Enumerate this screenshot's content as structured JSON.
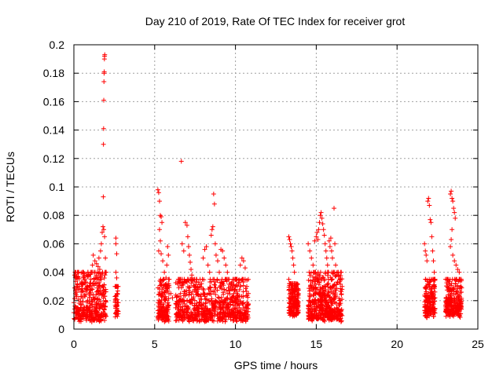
{
  "chart_data": {
    "type": "scatter",
    "title": "Day 210 of 2019, Rate Of TEC Index for receiver grot",
    "xlabel": "GPS time / hours",
    "ylabel": "ROTI / TECUs",
    "xlim": [
      0,
      25
    ],
    "ylim": [
      0,
      0.2
    ],
    "xticks": [
      "0",
      "5",
      "10",
      "15",
      "20",
      "25"
    ],
    "yticks": [
      "0",
      "0.02",
      "0.04",
      "0.06",
      "0.08",
      "0.1",
      "0.12",
      "0.14",
      "0.16",
      "0.18",
      "0.2"
    ],
    "grid": true,
    "marker": "plus",
    "color": "#ff0000",
    "series": [
      {
        "points": [
          [
            0.05,
            0.038
          ],
          [
            0.15,
            0.036
          ],
          [
            0.25,
            0.037
          ],
          [
            0.3,
            0.04
          ],
          [
            0.2,
            0.03
          ],
          [
            0.1,
            0.025
          ],
          [
            0.35,
            0.028
          ],
          [
            0.45,
            0.026
          ],
          [
            0.55,
            0.022
          ],
          [
            0.65,
            0.024
          ],
          [
            0.75,
            0.027
          ],
          [
            0.85,
            0.02
          ],
          [
            0.95,
            0.025
          ],
          [
            1.0,
            0.03
          ],
          [
            1.05,
            0.035
          ],
          [
            1.1,
            0.04
          ],
          [
            1.15,
            0.045
          ],
          [
            1.2,
            0.052
          ],
          [
            1.3,
            0.048
          ],
          [
            1.4,
            0.046
          ],
          [
            1.5,
            0.044
          ],
          [
            1.55,
            0.05
          ],
          [
            1.6,
            0.042
          ],
          [
            1.65,
            0.055
          ],
          [
            1.7,
            0.06
          ],
          [
            1.75,
            0.068
          ],
          [
            1.8,
            0.072
          ],
          [
            1.82,
            0.093
          ],
          [
            1.83,
            0.13
          ],
          [
            1.84,
            0.141
          ],
          [
            1.85,
            0.161
          ],
          [
            1.86,
            0.174
          ],
          [
            1.87,
            0.18
          ],
          [
            1.88,
            0.181
          ],
          [
            1.89,
            0.19
          ],
          [
            1.9,
            0.192
          ],
          [
            1.91,
            0.193
          ],
          [
            1.85,
            0.07
          ],
          [
            1.9,
            0.065
          ],
          [
            1.95,
            0.05
          ],
          [
            2.0,
            0.04
          ],
          [
            1.7,
            0.035
          ],
          [
            1.6,
            0.03
          ],
          [
            2.6,
            0.064
          ],
          [
            2.6,
            0.06
          ],
          [
            2.65,
            0.053
          ],
          [
            2.6,
            0.04
          ],
          [
            2.65,
            0.036
          ],
          [
            2.55,
            0.03
          ],
          [
            2.7,
            0.025
          ],
          [
            5.2,
            0.098
          ],
          [
            5.25,
            0.096
          ],
          [
            5.3,
            0.09
          ],
          [
            5.35,
            0.08
          ],
          [
            5.4,
            0.079
          ],
          [
            5.45,
            0.075
          ],
          [
            5.3,
            0.07
          ],
          [
            5.35,
            0.062
          ],
          [
            5.25,
            0.055
          ],
          [
            5.4,
            0.053
          ],
          [
            5.5,
            0.048
          ],
          [
            5.6,
            0.04
          ],
          [
            5.7,
            0.036
          ],
          [
            5.8,
            0.058
          ],
          [
            5.85,
            0.052
          ],
          [
            5.75,
            0.045
          ],
          [
            5.9,
            0.035
          ],
          [
            6.0,
            0.025
          ],
          [
            6.1,
            0.022
          ],
          [
            6.3,
            0.015
          ],
          [
            6.5,
            0.02
          ],
          [
            6.6,
            0.025
          ],
          [
            6.65,
            0.118
          ],
          [
            6.7,
            0.06
          ],
          [
            6.8,
            0.055
          ],
          [
            6.9,
            0.075
          ],
          [
            7.0,
            0.073
          ],
          [
            7.05,
            0.065
          ],
          [
            7.1,
            0.058
          ],
          [
            7.15,
            0.052
          ],
          [
            7.2,
            0.047
          ],
          [
            7.25,
            0.042
          ],
          [
            7.3,
            0.038
          ],
          [
            7.4,
            0.035
          ],
          [
            7.5,
            0.03
          ],
          [
            7.6,
            0.035
          ],
          [
            7.7,
            0.033
          ],
          [
            7.8,
            0.03
          ],
          [
            7.9,
            0.032
          ],
          [
            8.0,
            0.05
          ],
          [
            8.1,
            0.056
          ],
          [
            8.2,
            0.058
          ],
          [
            8.3,
            0.045
          ],
          [
            8.4,
            0.04
          ],
          [
            8.5,
            0.066
          ],
          [
            8.55,
            0.07
          ],
          [
            8.6,
            0.072
          ],
          [
            8.65,
            0.095
          ],
          [
            8.7,
            0.088
          ],
          [
            8.75,
            0.06
          ],
          [
            8.8,
            0.052
          ],
          [
            8.9,
            0.048
          ],
          [
            9.0,
            0.04
          ],
          [
            9.1,
            0.056
          ],
          [
            9.2,
            0.055
          ],
          [
            9.3,
            0.05
          ],
          [
            9.4,
            0.045
          ],
          [
            9.5,
            0.04
          ],
          [
            9.6,
            0.035
          ],
          [
            9.7,
            0.03
          ],
          [
            9.8,
            0.028
          ],
          [
            9.9,
            0.025
          ],
          [
            10.0,
            0.03
          ],
          [
            10.1,
            0.035
          ],
          [
            10.2,
            0.032
          ],
          [
            10.3,
            0.045
          ],
          [
            10.4,
            0.05
          ],
          [
            10.5,
            0.048
          ],
          [
            10.6,
            0.043
          ],
          [
            10.7,
            0.03
          ],
          [
            10.8,
            0.025
          ],
          [
            13.3,
            0.065
          ],
          [
            13.35,
            0.063
          ],
          [
            13.4,
            0.06
          ],
          [
            13.45,
            0.058
          ],
          [
            13.5,
            0.055
          ],
          [
            13.55,
            0.05
          ],
          [
            13.6,
            0.045
          ],
          [
            13.65,
            0.04
          ],
          [
            13.3,
            0.035
          ],
          [
            13.7,
            0.03
          ],
          [
            13.8,
            0.028
          ],
          [
            13.9,
            0.025
          ],
          [
            14.5,
            0.06
          ],
          [
            14.6,
            0.055
          ],
          [
            14.7,
            0.05
          ],
          [
            14.8,
            0.045
          ],
          [
            14.9,
            0.062
          ],
          [
            15.0,
            0.065
          ],
          [
            15.05,
            0.068
          ],
          [
            15.1,
            0.063
          ],
          [
            15.15,
            0.07
          ],
          [
            15.2,
            0.075
          ],
          [
            15.25,
            0.08
          ],
          [
            15.3,
            0.082
          ],
          [
            15.35,
            0.078
          ],
          [
            15.4,
            0.074
          ],
          [
            15.45,
            0.07
          ],
          [
            15.5,
            0.066
          ],
          [
            15.55,
            0.06
          ],
          [
            15.6,
            0.055
          ],
          [
            15.65,
            0.05
          ],
          [
            15.7,
            0.045
          ],
          [
            15.75,
            0.04
          ],
          [
            15.8,
            0.062
          ],
          [
            15.85,
            0.058
          ],
          [
            15.9,
            0.064
          ],
          [
            15.95,
            0.055
          ],
          [
            16.0,
            0.05
          ],
          [
            16.1,
            0.085
          ],
          [
            16.15,
            0.06
          ],
          [
            16.2,
            0.045
          ],
          [
            16.3,
            0.04
          ],
          [
            16.4,
            0.038
          ],
          [
            16.5,
            0.035
          ],
          [
            16.6,
            0.03
          ],
          [
            21.7,
            0.06
          ],
          [
            21.75,
            0.055
          ],
          [
            21.8,
            0.052
          ],
          [
            21.85,
            0.048
          ],
          [
            21.9,
            0.09
          ],
          [
            21.95,
            0.092
          ],
          [
            22.0,
            0.087
          ],
          [
            22.05,
            0.077
          ],
          [
            22.1,
            0.075
          ],
          [
            22.15,
            0.065
          ],
          [
            22.2,
            0.055
          ],
          [
            22.25,
            0.048
          ],
          [
            22.3,
            0.04
          ],
          [
            22.35,
            0.035
          ],
          [
            23.3,
            0.095
          ],
          [
            23.35,
            0.097
          ],
          [
            23.4,
            0.092
          ],
          [
            23.45,
            0.09
          ],
          [
            23.5,
            0.085
          ],
          [
            23.55,
            0.082
          ],
          [
            23.6,
            0.078
          ],
          [
            23.4,
            0.07
          ],
          [
            23.35,
            0.063
          ],
          [
            23.3,
            0.058
          ],
          [
            23.45,
            0.052
          ],
          [
            23.55,
            0.048
          ],
          [
            23.65,
            0.045
          ],
          [
            23.75,
            0.042
          ],
          [
            23.85,
            0.04
          ],
          [
            23.9,
            0.035
          ],
          [
            23.95,
            0.03
          ]
        ]
      }
    ],
    "dense_clusters": [
      {
        "x": [
          0.0,
          2.0
        ],
        "y": [
          0.005,
          0.04
        ],
        "n": 360
      },
      {
        "x": [
          2.55,
          2.75
        ],
        "y": [
          0.008,
          0.03
        ],
        "n": 40
      },
      {
        "x": [
          5.2,
          5.9
        ],
        "y": [
          0.005,
          0.035
        ],
        "n": 150
      },
      {
        "x": [
          6.3,
          10.8
        ],
        "y": [
          0.005,
          0.035
        ],
        "n": 700
      },
      {
        "x": [
          13.3,
          13.9
        ],
        "y": [
          0.008,
          0.032
        ],
        "n": 170
      },
      {
        "x": [
          14.5,
          16.6
        ],
        "y": [
          0.005,
          0.04
        ],
        "n": 480
      },
      {
        "x": [
          21.7,
          22.35
        ],
        "y": [
          0.008,
          0.035
        ],
        "n": 160
      },
      {
        "x": [
          23.0,
          24.0
        ],
        "y": [
          0.008,
          0.035
        ],
        "n": 240
      }
    ]
  }
}
